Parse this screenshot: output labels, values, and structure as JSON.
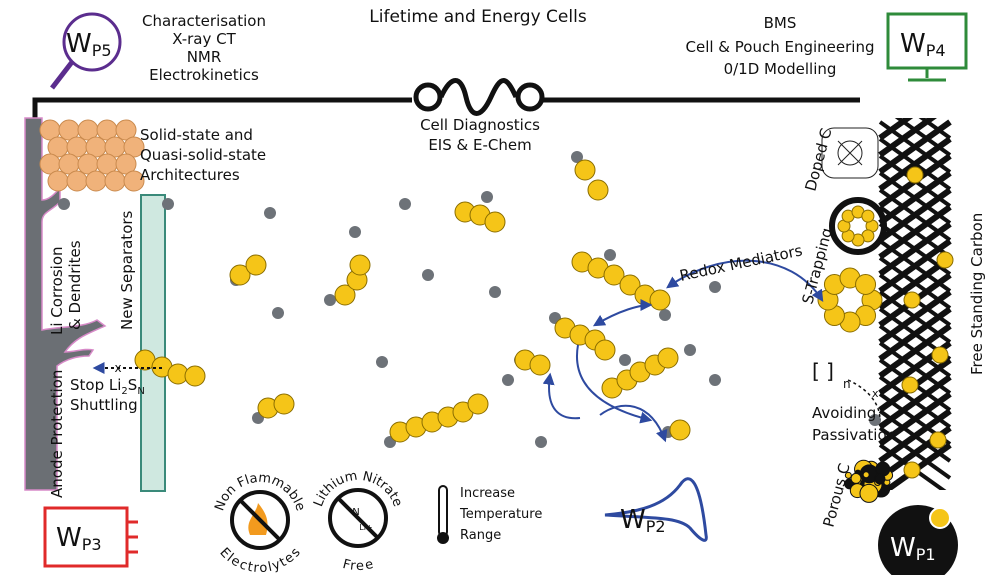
{
  "header": {
    "title": "Lifetime and Energy Cells"
  },
  "work_packages": [
    {
      "letter": "W",
      "sub": "P5"
    },
    {
      "letter": "W",
      "sub": "P4"
    },
    {
      "letter": "W",
      "sub": "P3"
    },
    {
      "letter": "W",
      "sub": "P2"
    },
    {
      "letter": "W",
      "sub": "P1"
    }
  ],
  "characterisation": [
    "Characterisation",
    "X-ray CT",
    "NMR",
    "Electrokinetics"
  ],
  "engineering": [
    "BMS",
    "Cell & Pouch Engineering",
    "0/1D Modelling"
  ],
  "diagnostics": [
    "Cell Diagnostics",
    "EIS & E-Chem"
  ],
  "architectures": [
    "Solid-state and",
    "Quasi-solid-state",
    "Architectures"
  ],
  "anode": {
    "corrosion": [
      "Li Corrosion",
      "& Dendrites"
    ],
    "separators": "New Separators",
    "protection": "Anode Protection",
    "blocked": "x",
    "shuttling": {
      "prefix": "Stop Li",
      "sub1": "2",
      "mid": "S",
      "sub2": "N",
      "line2": "Shuttling"
    }
  },
  "cathode": {
    "doped": "Doped C",
    "trapping": "S-Trapping",
    "free": "Free Standing Carbon",
    "porous": "Porous C",
    "passivation": [
      "Avoiding",
      "Passivation"
    ],
    "polymer": "n",
    "blocked": "x"
  },
  "redox": "Redox Mediators",
  "electrolyte": {
    "non_flammable": [
      "Non Flammable",
      "Electrolytes"
    ],
    "nitrate": [
      "Lithium Nitrate",
      "Free"
    ],
    "temperature": [
      "Increase",
      "Temperature",
      "Range"
    ],
    "ion": "Li+"
  }
}
